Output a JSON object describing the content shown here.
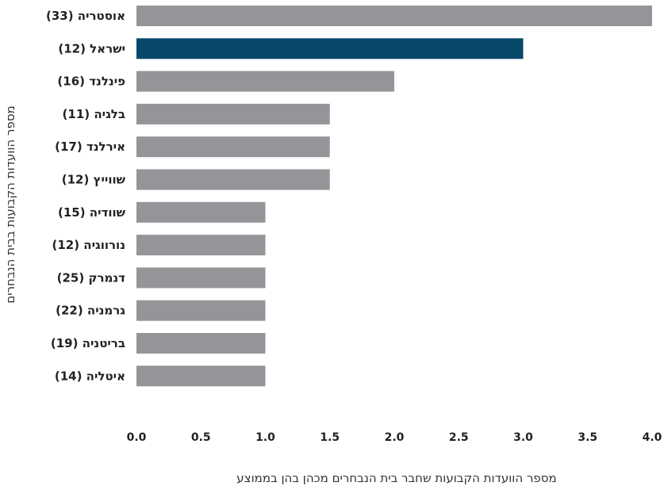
{
  "chart_data": {
    "type": "bar",
    "orientation": "horizontal",
    "categories": [
      "אוסטריה (33)",
      "ישראל (12)",
      "פינלנד (16)",
      "בלגיה (11)",
      "אירלנד (17)",
      "שווייץ (12)",
      "שוודיה (15)",
      "נורווגיה (12)",
      "דנמרק (25)",
      "גרמניה (22)",
      "בריטניה (19)",
      "איטליה (14)"
    ],
    "values": [
      4.0,
      3.0,
      2.0,
      1.5,
      1.5,
      1.5,
      1.0,
      1.0,
      1.0,
      1.0,
      1.0,
      1.0
    ],
    "highlight_index": 1,
    "colors": {
      "bar": "#939598",
      "highlight": "#07486b"
    },
    "xlim": [
      0,
      4.0
    ],
    "xticks": [
      "0.0",
      "0.5",
      "1.0",
      "1.5",
      "2.0",
      "2.5",
      "3.0",
      "3.5",
      "4.0"
    ],
    "xlabel": "מספר הוועדות הקבועות שחבר בית הנבחרים מכהן בהן בממוצע",
    "ylabel": "מספר הוועדות הקבועות בבית הנבחרים",
    "grid": false
  }
}
